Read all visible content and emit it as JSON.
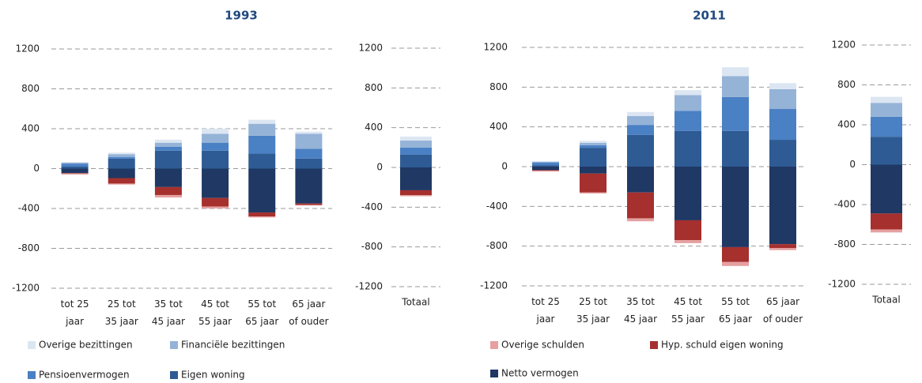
{
  "chart_data": [
    {
      "type": "bar",
      "stacked": true,
      "title": "1993",
      "categories": [
        "tot 25\njaar",
        "25 tot\n35 jaar",
        "35 tot\n45 jaar",
        "45 tot\n55 jaar",
        "55 tot\n65 jaar",
        "65 jaar\nof ouder"
      ],
      "series": [
        {
          "name": "Eigen woning",
          "color": "#2e5b94",
          "values": [
            20,
            100,
            180,
            180,
            150,
            100
          ]
        },
        {
          "name": "Pensioenvermogen",
          "color": "#4a80c4",
          "values": [
            30,
            15,
            40,
            80,
            180,
            100
          ]
        },
        {
          "name": "Financiële bezittingen",
          "color": "#95b3d7",
          "values": [
            10,
            30,
            40,
            90,
            120,
            150
          ]
        },
        {
          "name": "Overige bezittingen",
          "color": "#dce6f2",
          "values": [
            5,
            15,
            30,
            50,
            40,
            20
          ]
        },
        {
          "color": "#1f3864",
          "values": [
            -45,
            -95,
            -185,
            -295,
            -440,
            -350
          ]
        },
        {
          "color": "#a5302e",
          "values": [
            -5,
            -55,
            -80,
            -85,
            -40,
            -15
          ]
        },
        {
          "color": "#e6a0a0",
          "values": [
            -10,
            -10,
            -25,
            -20,
            -10,
            -5
          ]
        }
      ],
      "ylim": [
        -1200,
        1200
      ],
      "yticks": [
        -1200,
        -800,
        -400,
        0,
        400,
        800,
        1200
      ],
      "grid": true
    },
    {
      "type": "bar",
      "stacked": true,
      "categories": [
        "Totaal"
      ],
      "series": [
        {
          "color": "#2e5b94",
          "values": [
            130
          ]
        },
        {
          "color": "#4a80c4",
          "values": [
            70
          ]
        },
        {
          "color": "#95b3d7",
          "values": [
            70
          ]
        },
        {
          "color": "#dce6f2",
          "values": [
            40
          ]
        },
        {
          "color": "#1f3864",
          "values": [
            -230
          ]
        },
        {
          "color": "#a5302e",
          "values": [
            -50
          ]
        },
        {
          "color": "#e6a0a0",
          "values": [
            -10
          ]
        }
      ],
      "ylim": [
        -1200,
        1200
      ],
      "yticks": [
        -1200,
        -800,
        -400,
        0,
        400,
        800,
        1200
      ],
      "grid": true
    },
    {
      "type": "bar",
      "stacked": true,
      "title": "2011",
      "categories": [
        "tot 25\njaar",
        "25 tot\n35 jaar",
        "35 tot\n45 jaar",
        "45 tot\n55 jaar",
        "55 tot\n65 jaar",
        "65 jaar\nof ouder"
      ],
      "series": [
        {
          "color": "#2e5b94",
          "values": [
            15,
            190,
            320,
            360,
            360,
            270
          ]
        },
        {
          "color": "#4a80c4",
          "values": [
            25,
            25,
            100,
            200,
            340,
            310
          ]
        },
        {
          "color": "#95b3d7",
          "values": [
            10,
            25,
            90,
            160,
            210,
            200
          ]
        },
        {
          "color": "#dce6f2",
          "values": [
            5,
            20,
            40,
            50,
            90,
            60
          ]
        },
        {
          "name": "Netto vermogen",
          "color": "#1f3864",
          "values": [
            -35,
            -70,
            -260,
            -540,
            -810,
            -780
          ]
        },
        {
          "name": "Hyp. schuld eigen woning",
          "color": "#a5302e",
          "values": [
            -5,
            -190,
            -260,
            -200,
            -150,
            -40
          ]
        },
        {
          "name": "Overige schulden",
          "color": "#e6a0a0",
          "values": [
            -10,
            -10,
            -30,
            -30,
            -40,
            -20
          ]
        }
      ],
      "ylim": [
        -1200,
        1200
      ],
      "yticks": [
        -1200,
        -800,
        -400,
        0,
        400,
        800,
        1200
      ],
      "grid": true
    },
    {
      "type": "bar",
      "stacked": true,
      "categories": [
        "Totaal"
      ],
      "series": [
        {
          "color": "#2e5b94",
          "values": [
            280
          ]
        },
        {
          "color": "#4a80c4",
          "values": [
            200
          ]
        },
        {
          "color": "#95b3d7",
          "values": [
            140
          ]
        },
        {
          "color": "#dce6f2",
          "values": [
            60
          ]
        },
        {
          "color": "#1f3864",
          "values": [
            -490
          ]
        },
        {
          "color": "#a5302e",
          "values": [
            -160
          ]
        },
        {
          "color": "#e6a0a0",
          "values": [
            -30
          ]
        }
      ],
      "ylim": [
        -1200,
        1200
      ],
      "yticks": [
        -1200,
        -800,
        -400,
        0,
        400,
        800,
        1200
      ],
      "grid": true
    }
  ]
}
